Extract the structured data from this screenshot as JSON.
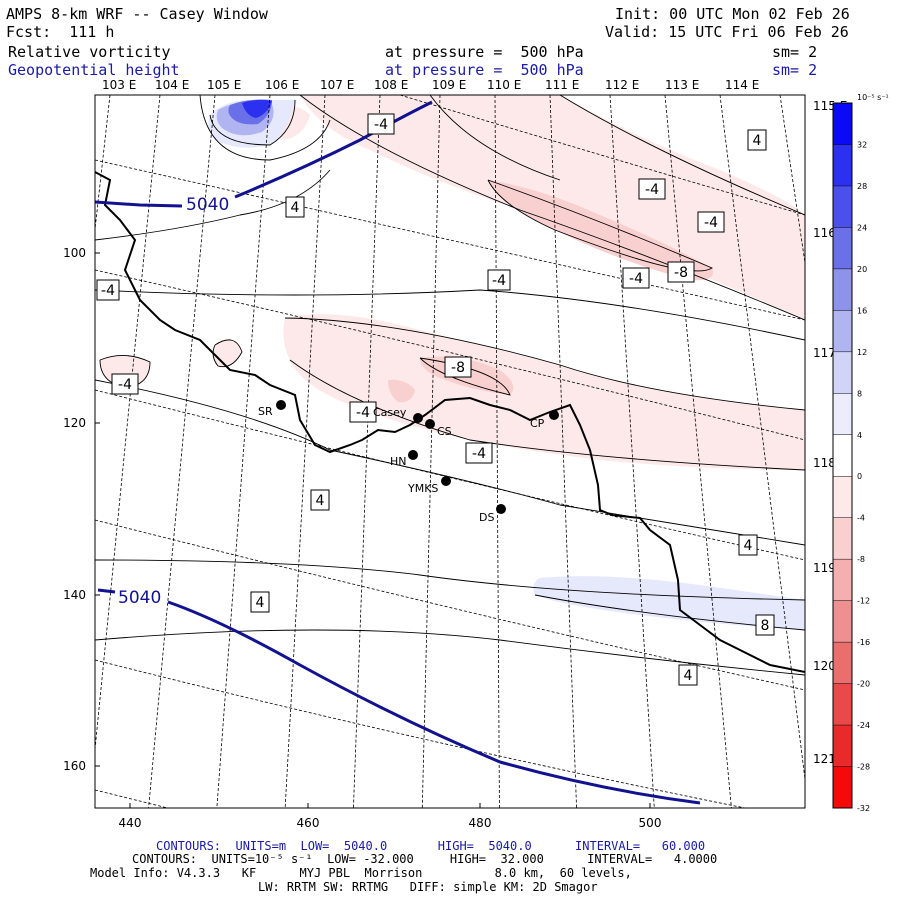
{
  "header": {
    "title": "AMPS 8-km WRF -- Casey Window",
    "init": "Init: 00 UTC Mon 02 Feb 26",
    "forecast": "Fcst:  111 h",
    "valid": "Valid: 15 UTC Fri 06 Feb 26",
    "field1": {
      "name": "Relative vorticity",
      "level": "at pressure =  500 hPa",
      "smooth": "sm= 2"
    },
    "field2": {
      "name": "Geopotential height",
      "level": "at pressure =  500 hPa",
      "smooth": "sm= 2"
    }
  },
  "map": {
    "lon_top_labels": [
      "103 E",
      "104 E",
      "105 E",
      "106 E",
      "107 E",
      "108 E",
      "109 E",
      "110 E",
      "111 E",
      "112 E",
      "113 E",
      "114 E"
    ],
    "lat_right_labels": [
      "115 E",
      "116 E",
      "117 E",
      "118 E",
      "119 E",
      "120 E",
      "121 E"
    ],
    "x_ticks": [
      "440",
      "460",
      "480",
      "500"
    ],
    "y_ticks": [
      "100",
      "120",
      "140",
      "160"
    ],
    "height_contour_label": "5040",
    "stations": [
      {
        "name": "SR"
      },
      {
        "name": "Casey"
      },
      {
        "name": "CS"
      },
      {
        "name": "CP"
      },
      {
        "name": "HN"
      },
      {
        "name": "YMKS"
      },
      {
        "name": "DS"
      }
    ],
    "vort_labels": [
      "-4",
      "-4",
      "-4",
      "-4",
      "-4",
      "-4",
      "-4",
      "-4",
      "-4",
      "-8",
      "-8",
      "4",
      "4",
      "4",
      "4",
      "4",
      "4",
      "8"
    ]
  },
  "colorbar": {
    "units": "10⁻⁵ s⁻¹",
    "ticks": [
      "32",
      "28",
      "24",
      "20",
      "16",
      "12",
      "8",
      "4",
      "0",
      "-4",
      "-8",
      "-12",
      "-16",
      "-20",
      "-24",
      "-28",
      "-32"
    ],
    "colors": [
      "#0a0af5",
      "#2c30ef",
      "#4a50ea",
      "#6a70e8",
      "#8d92ea",
      "#b0b4f0",
      "#d1d4f7",
      "#ececfd",
      "#ffffff",
      "#fde9e9",
      "#f9d0d0",
      "#f4b0b0",
      "#ef9090",
      "#ea6e6e",
      "#e84a4a",
      "#e82a2a",
      "#f50a0a"
    ]
  },
  "footer": {
    "line1": {
      "prefix": "CONTOURS:  UNITS=m  LOW=  5040.0",
      "high": "HIGH=  5040.0",
      "interval": "INTERVAL=   60.000"
    },
    "line2": {
      "prefix": "CONTOURS:  UNITS=10⁻⁵ s⁻¹  LOW= -32.000",
      "high": "HIGH=  32.000",
      "interval": "INTERVAL=   4.0000"
    },
    "line3": "Model Info: V4.3.3   KF      MYJ PBL  Morrison          8.0 km,  60 levels,",
    "line4": "LW: RRTM SW: RRTMG   DIFF: simple KM: 2D Smagor"
  }
}
